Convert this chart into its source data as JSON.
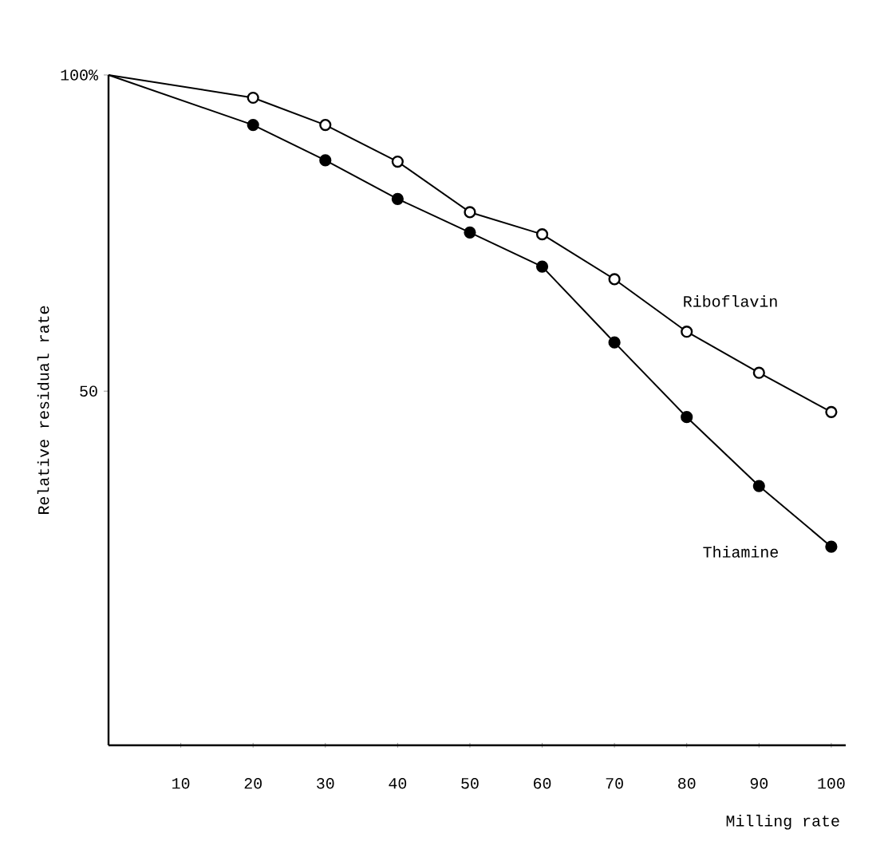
{
  "chart_data": {
    "type": "line",
    "xlabel": "Milling rate",
    "ylabel": "Relative residual rate",
    "xlim": [
      0,
      102
    ],
    "ylim": [
      -6,
      100
    ],
    "xticks": [
      10,
      20,
      30,
      40,
      50,
      60,
      70,
      80,
      90,
      100
    ],
    "yticks": [
      {
        "value": 100,
        "label": "100%"
      },
      50
    ],
    "marker": "circle",
    "series": [
      {
        "name": "Riboflavin",
        "color": "#000000",
        "x": [
          0,
          20,
          30,
          40,
          50,
          60,
          70,
          80,
          90,
          100
        ],
        "values": [
          100,
          96.4,
          92.1,
          86.3,
          78.3,
          74.8,
          67.7,
          59.4,
          52.9,
          46.7
        ]
      },
      {
        "name": "Thiamine",
        "color": "#000000",
        "x": [
          0,
          20,
          30,
          40,
          50,
          60,
          70,
          80,
          90,
          100
        ],
        "values": [
          100,
          92.1,
          86.5,
          80.4,
          75.1,
          69.7,
          57.7,
          45.9,
          35,
          25.4
        ]
      }
    ]
  }
}
